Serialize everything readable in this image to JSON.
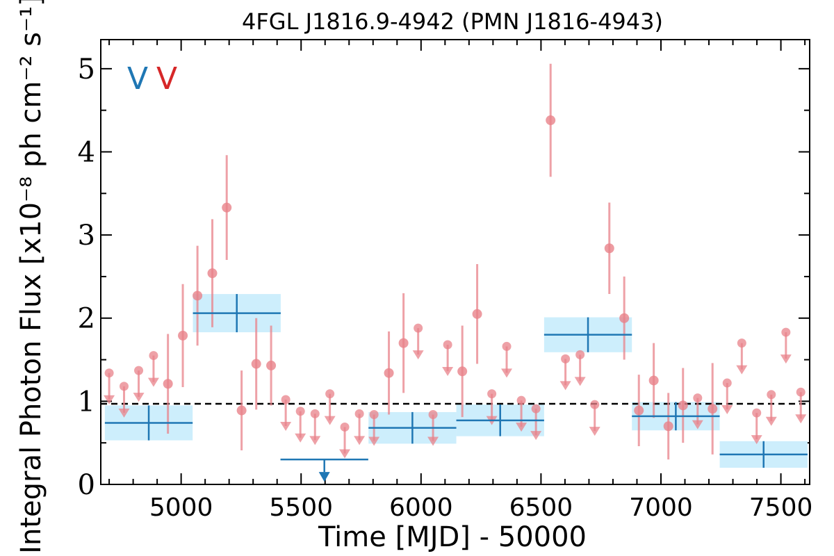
{
  "chart_data": {
    "type": "scatter",
    "title": "4FGL J1816.9-4942 (PMN J1816-4943)",
    "xlabel": "Time [MJD] - 50000",
    "ylabel": "Integral Photon Flux [x10⁻⁸ ph cm⁻² s⁻¹]",
    "xlim": [
      4665,
      7620
    ],
    "ylim": [
      0,
      5.35
    ],
    "x_ticks": [
      5000,
      5500,
      6000,
      6500,
      7000,
      7500
    ],
    "y_ticks": [
      0,
      1,
      2,
      3,
      4,
      5
    ],
    "reference_line": {
      "y": 0.97,
      "style": "dashed",
      "color": "#000000"
    },
    "legend": {
      "placement": "top-left",
      "entries": [
        {
          "glyph": "V",
          "color": "#1f77b4"
        },
        {
          "glyph": "V",
          "color": "#d62728"
        }
      ]
    },
    "series": [
      {
        "color": "#1f77b4",
        "band_color": "#cdeefc",
        "points": [
          {
            "x": 4865,
            "xerr": 183,
            "y": 0.74,
            "yerr": 0.21,
            "upper_limit": false
          },
          {
            "x": 5232,
            "xerr": 183,
            "y": 2.06,
            "yerr": 0.23,
            "upper_limit": false
          },
          {
            "x": 5597,
            "xerr": 183,
            "y": 0.3,
            "upper_limit": true
          },
          {
            "x": 5964,
            "xerr": 183,
            "y": 0.68,
            "yerr": 0.19,
            "upper_limit": false
          },
          {
            "x": 6330,
            "xerr": 183,
            "y": 0.77,
            "yerr": 0.19,
            "upper_limit": false
          },
          {
            "x": 6696,
            "xerr": 183,
            "y": 1.8,
            "yerr": 0.21,
            "upper_limit": false
          },
          {
            "x": 7062,
            "xerr": 183,
            "y": 0.82,
            "yerr": 0.17,
            "upper_limit": false
          },
          {
            "x": 7428,
            "xerr": 183,
            "y": 0.36,
            "yerr": 0.16,
            "upper_limit": false
          }
        ]
      },
      {
        "color": "#e8828a",
        "points": [
          {
            "x": 4700,
            "y": 1.34,
            "upper_limit": true
          },
          {
            "x": 4762,
            "y": 1.18,
            "upper_limit": true
          },
          {
            "x": 4823,
            "y": 1.37,
            "upper_limit": true
          },
          {
            "x": 4885,
            "y": 1.55,
            "upper_limit": true
          },
          {
            "x": 4945,
            "y": 1.21,
            "yerr": 0.6,
            "upper_limit": false
          },
          {
            "x": 5007,
            "y": 1.79,
            "yerr": 0.62,
            "upper_limit": false
          },
          {
            "x": 5068,
            "y": 2.27,
            "yerr": 0.6,
            "upper_limit": false
          },
          {
            "x": 5130,
            "y": 2.54,
            "yerr": 0.65,
            "upper_limit": false
          },
          {
            "x": 5190,
            "y": 3.33,
            "yerr": 0.63,
            "upper_limit": false
          },
          {
            "x": 5252,
            "y": 0.89,
            "yerr": 0.48,
            "upper_limit": false
          },
          {
            "x": 5313,
            "y": 1.45,
            "yerr": 0.55,
            "upper_limit": false
          },
          {
            "x": 5375,
            "y": 1.43,
            "yerr": 0.48,
            "upper_limit": false
          },
          {
            "x": 5436,
            "y": 1.02,
            "upper_limit": true
          },
          {
            "x": 5497,
            "y": 0.88,
            "upper_limit": true
          },
          {
            "x": 5558,
            "y": 0.85,
            "upper_limit": true
          },
          {
            "x": 5620,
            "y": 1.09,
            "upper_limit": true
          },
          {
            "x": 5682,
            "y": 0.69,
            "upper_limit": true
          },
          {
            "x": 5743,
            "y": 0.85,
            "upper_limit": true
          },
          {
            "x": 5804,
            "y": 0.84,
            "upper_limit": true
          },
          {
            "x": 5866,
            "y": 1.34,
            "yerr": 0.5,
            "upper_limit": false
          },
          {
            "x": 5927,
            "y": 1.7,
            "yerr": 0.6,
            "upper_limit": false
          },
          {
            "x": 5988,
            "y": 1.88,
            "upper_limit": true
          },
          {
            "x": 6050,
            "y": 0.84,
            "upper_limit": true
          },
          {
            "x": 6111,
            "y": 1.68,
            "upper_limit": true
          },
          {
            "x": 6172,
            "y": 1.36,
            "yerr": 0.55,
            "upper_limit": false
          },
          {
            "x": 6234,
            "y": 2.05,
            "yerr": 0.6,
            "upper_limit": false
          },
          {
            "x": 6295,
            "y": 1.09,
            "upper_limit": true
          },
          {
            "x": 6357,
            "y": 1.66,
            "upper_limit": true
          },
          {
            "x": 6418,
            "y": 1.01,
            "upper_limit": true
          },
          {
            "x": 6479,
            "y": 0.91,
            "upper_limit": true
          },
          {
            "x": 6540,
            "y": 4.38,
            "yerr": 0.68,
            "upper_limit": false
          },
          {
            "x": 6602,
            "y": 1.51,
            "upper_limit": true
          },
          {
            "x": 6663,
            "y": 1.56,
            "upper_limit": true
          },
          {
            "x": 6724,
            "y": 0.96,
            "upper_limit": true
          },
          {
            "x": 6785,
            "y": 2.84,
            "yerr": 0.55,
            "upper_limit": false
          },
          {
            "x": 6847,
            "y": 2.0,
            "yerr": 0.5,
            "upper_limit": false
          },
          {
            "x": 6908,
            "y": 0.89,
            "yerr": 0.43,
            "upper_limit": false
          },
          {
            "x": 6970,
            "y": 1.25,
            "yerr": 0.45,
            "upper_limit": false
          },
          {
            "x": 7031,
            "y": 0.7,
            "yerr": 0.4,
            "upper_limit": false
          },
          {
            "x": 7092,
            "y": 0.95,
            "yerr": 0.45,
            "upper_limit": false
          },
          {
            "x": 7153,
            "y": 1.04,
            "upper_limit": true
          },
          {
            "x": 7215,
            "y": 0.91,
            "yerr": 0.55,
            "upper_limit": false
          },
          {
            "x": 7276,
            "y": 1.22,
            "upper_limit": true
          },
          {
            "x": 7337,
            "y": 1.7,
            "upper_limit": true
          },
          {
            "x": 7399,
            "y": 0.86,
            "upper_limit": true
          },
          {
            "x": 7460,
            "y": 1.08,
            "upper_limit": true
          },
          {
            "x": 7521,
            "y": 1.83,
            "upper_limit": true
          },
          {
            "x": 7583,
            "y": 1.11,
            "upper_limit": true
          }
        ]
      }
    ]
  }
}
